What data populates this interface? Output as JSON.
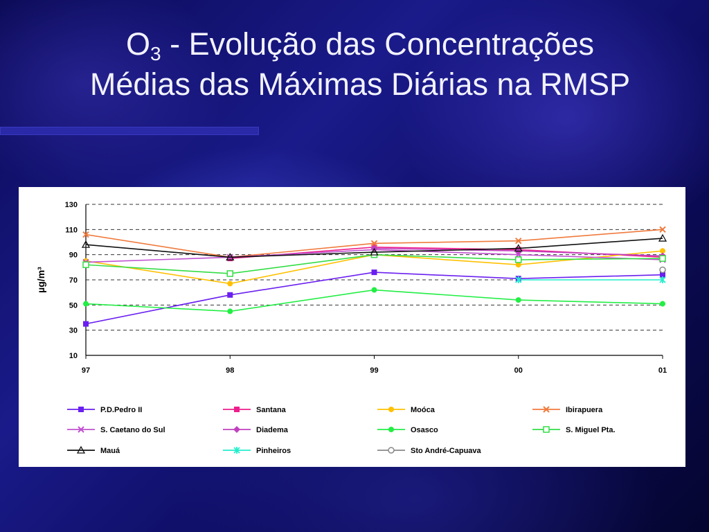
{
  "slide": {
    "title_line1_prefix": "O",
    "title_line1_sub": "3",
    "title_line1_rest": " - Evolução das Concentrações",
    "title_line2": "Médias das Máximas Diárias na RMSP"
  },
  "chart_data": {
    "type": "line",
    "title": "",
    "xlabel": "",
    "ylabel": "µg/m³",
    "categories": [
      "97",
      "98",
      "99",
      "00",
      "01"
    ],
    "ylim": [
      10,
      130
    ],
    "yticks": [
      10,
      30,
      50,
      70,
      90,
      110,
      130
    ],
    "grid": true,
    "legend_position": "bottom",
    "series": [
      {
        "name": "P.D.Pedro II",
        "color": "#6a1ff0",
        "marker": "square",
        "values": [
          35,
          58,
          76,
          71,
          74
        ]
      },
      {
        "name": "Santana",
        "color": "#ee1e8c",
        "marker": "square",
        "values": [
          null,
          87,
          96,
          94,
          88
        ]
      },
      {
        "name": "Moóca",
        "color": "#ffc000",
        "marker": "circle",
        "values": [
          85,
          67,
          90,
          82,
          93
        ]
      },
      {
        "name": "Ibirapuera",
        "color": "#f07a3c",
        "marker": "x",
        "values": [
          106,
          88,
          99,
          101,
          110
        ]
      },
      {
        "name": "S. Caetano do Sul",
        "color": "#c050d0",
        "marker": "x",
        "values": [
          84,
          88,
          94,
          90,
          86
        ]
      },
      {
        "name": "Diadema",
        "color": "#c040c0",
        "marker": "diamond",
        "values": [
          null,
          null,
          95,
          93,
          89
        ]
      },
      {
        "name": "Osasco",
        "color": "#22ee44",
        "marker": "circle",
        "values": [
          51,
          45,
          62,
          54,
          51
        ]
      },
      {
        "name": "S. Miguel Pta.",
        "color": "#33dd44",
        "marker": "open-square",
        "values": [
          82,
          75,
          90,
          86,
          87
        ]
      },
      {
        "name": "Mauá",
        "color": "#111111",
        "marker": "triangle",
        "values": [
          98,
          88,
          92,
          95,
          103
        ]
      },
      {
        "name": "Pinheiros",
        "color": "#22eecc",
        "marker": "star",
        "values": [
          null,
          null,
          null,
          70,
          70
        ]
      },
      {
        "name": "Sto André-Capuava",
        "color": "#888888",
        "marker": "open-circle",
        "values": [
          null,
          null,
          null,
          null,
          78
        ]
      }
    ]
  }
}
